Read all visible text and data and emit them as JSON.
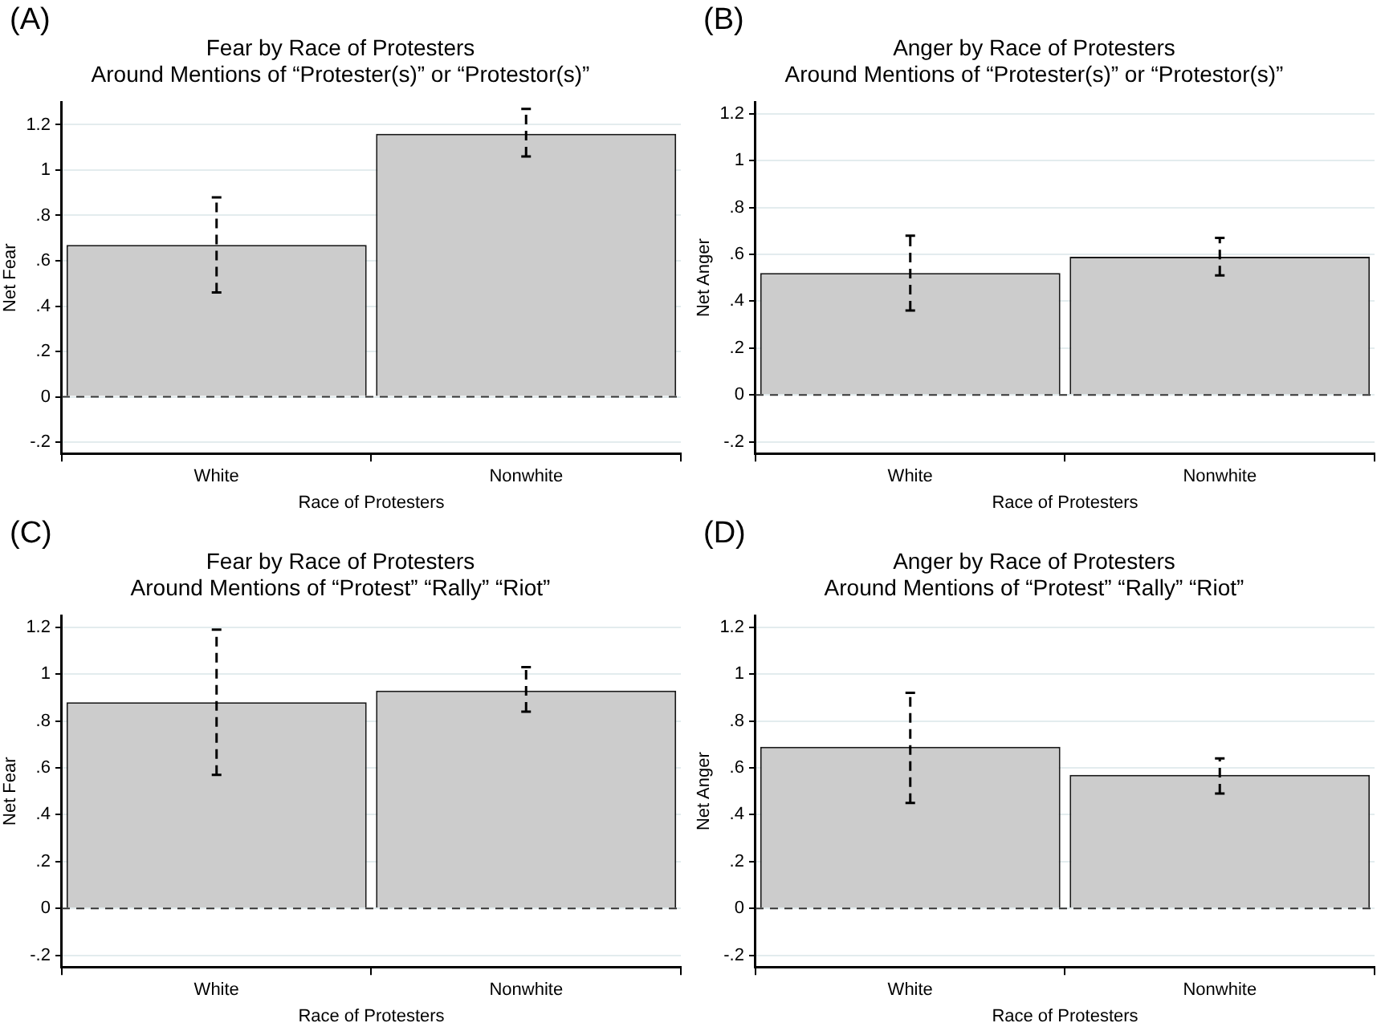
{
  "chart_data": [
    {
      "type": "bar",
      "title": "Fear by Race of Protesters",
      "subtitle": "Around Mentions of “Protester(s)” or “Protestor(s)”",
      "annotations": [
        "(A)"
      ],
      "xlabel": "Race of Protesters",
      "ylabel": "Net Fear",
      "categories": [
        "White",
        "Nonwhite"
      ],
      "values": [
        0.67,
        1.16
      ],
      "errors": [
        [
          0.46,
          0.88
        ],
        [
          1.06,
          1.27
        ]
      ],
      "color": "#cccccc",
      "ylim": [
        -0.25,
        1.3
      ],
      "yticks": [
        {
          "value": -0.2,
          "label": "-.2"
        },
        0,
        {
          "value": 0.2,
          "label": ".2"
        },
        {
          "value": 0.4,
          "label": ".4"
        },
        {
          "value": 0.6,
          "label": ".6"
        },
        {
          "value": 0.8,
          "label": ".8"
        },
        1,
        1.2
      ],
      "grid": "y",
      "ref_lines": [
        {
          "axis": "y",
          "value": 0,
          "line_style": "dashed"
        }
      ]
    },
    {
      "type": "bar",
      "title": "Anger by Race of Protesters",
      "subtitle": "Around Mentions of “Protester(s)” or “Protestor(s)”",
      "annotations": [
        "(B)"
      ],
      "xlabel": "Race of Protesters",
      "ylabel": "Net Anger",
      "categories": [
        "White",
        "Nonwhite"
      ],
      "values": [
        0.52,
        0.59
      ],
      "errors": [
        [
          0.36,
          0.68
        ],
        [
          0.51,
          0.67
        ]
      ],
      "color": "#cccccc",
      "ylim": [
        -0.25,
        1.25
      ],
      "yticks": [
        {
          "value": -0.2,
          "label": "-.2"
        },
        0,
        {
          "value": 0.2,
          "label": ".2"
        },
        {
          "value": 0.4,
          "label": ".4"
        },
        {
          "value": 0.6,
          "label": ".6"
        },
        {
          "value": 0.8,
          "label": ".8"
        },
        1,
        1.2
      ],
      "grid": "y",
      "ref_lines": [
        {
          "axis": "y",
          "value": 0,
          "line_style": "dashed"
        }
      ]
    },
    {
      "type": "bar",
      "title": "Fear by Race of Protesters",
      "subtitle": "Around Mentions of “Protest” “Rally” “Riot”",
      "annotations": [
        "(C)"
      ],
      "xlabel": "Race of Protesters",
      "ylabel": "Net Fear",
      "categories": [
        "White",
        "Nonwhite"
      ],
      "values": [
        0.88,
        0.93
      ],
      "errors": [
        [
          0.57,
          1.19
        ],
        [
          0.84,
          1.03
        ]
      ],
      "color": "#cccccc",
      "ylim": [
        -0.25,
        1.25
      ],
      "yticks": [
        {
          "value": -0.2,
          "label": "-.2"
        },
        0,
        {
          "value": 0.2,
          "label": ".2"
        },
        {
          "value": 0.4,
          "label": ".4"
        },
        {
          "value": 0.6,
          "label": ".6"
        },
        {
          "value": 0.8,
          "label": ".8"
        },
        1,
        1.2
      ],
      "grid": "y",
      "ref_lines": [
        {
          "axis": "y",
          "value": 0,
          "line_style": "dashed"
        }
      ]
    },
    {
      "type": "bar",
      "title": "Anger by Race of Protesters",
      "subtitle": "Around Mentions of “Protest” “Rally” “Riot”",
      "annotations": [
        "(D)"
      ],
      "xlabel": "Race of Protesters",
      "ylabel": "Net Anger",
      "categories": [
        "White",
        "Nonwhite"
      ],
      "values": [
        0.69,
        0.57
      ],
      "errors": [
        [
          0.45,
          0.92
        ],
        [
          0.49,
          0.64
        ]
      ],
      "color": "#cccccc",
      "ylim": [
        -0.25,
        1.25
      ],
      "yticks": [
        {
          "value": -0.2,
          "label": "-.2"
        },
        0,
        {
          "value": 0.2,
          "label": ".2"
        },
        {
          "value": 0.4,
          "label": ".4"
        },
        {
          "value": 0.6,
          "label": ".6"
        },
        {
          "value": 0.8,
          "label": ".8"
        },
        1,
        1.2
      ],
      "grid": "y",
      "ref_lines": [
        {
          "axis": "y",
          "value": 0,
          "line_style": "dashed"
        }
      ]
    }
  ]
}
